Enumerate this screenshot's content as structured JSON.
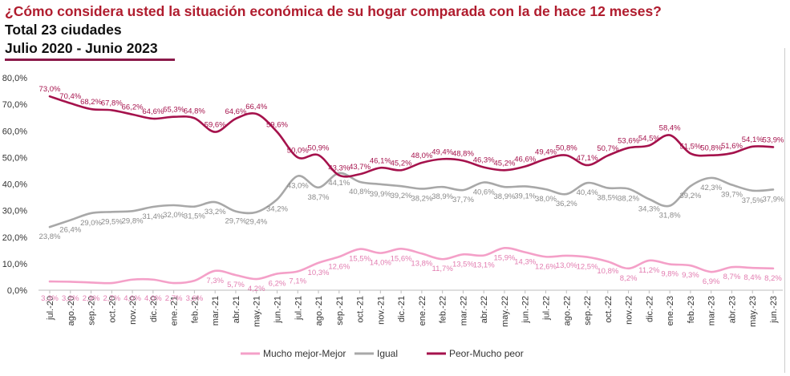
{
  "header": {
    "title": "¿Cómo considera usted la situación económica de su hogar comparada con la de hace 12 meses?",
    "subtitle": "Total 23 ciudades",
    "period": "Julio 2020 - Junio 2023"
  },
  "chart_data": {
    "type": "line",
    "title": "¿Cómo considera usted la situación económica de su hogar comparada con la de hace 12 meses?",
    "xlabel": "",
    "ylabel": "",
    "ylim": [
      0,
      80
    ],
    "yticks": [
      "0,0%",
      "10,0%",
      "20,0%",
      "30,0%",
      "40,0%",
      "50,0%",
      "60,0%",
      "70,0%",
      "80,0%"
    ],
    "grid": false,
    "legend": "bottom",
    "categories": [
      "jul.-20",
      "ago.-20",
      "sep.-20",
      "oct.-20",
      "nov.-20",
      "dic.-20",
      "ene.-21",
      "feb.-21",
      "mar.-21",
      "abr.-21",
      "may.-21",
      "jun.-21",
      "jul.-21",
      "ago.-21",
      "sep.-21",
      "oct.-21",
      "nov.-21",
      "dic.-21",
      "ene.-22",
      "feb.-22",
      "mar.-22",
      "abr.-22",
      "may.-22",
      "jun.-22",
      "jul.-22",
      "ago.-22",
      "sep.-22",
      "oct.-22",
      "nov.-22",
      "dic.-22",
      "ene.-23",
      "feb.-23",
      "mar.-23",
      "abr.-23",
      "may.-23",
      "jun.-23"
    ],
    "series": [
      {
        "name": "Mucho mejor-Mejor",
        "color": "#f4a0c8",
        "values": [
          3.3,
          3.2,
          2.9,
          2.7,
          4.0,
          4.0,
          2.7,
          3.6,
          7.3,
          5.7,
          4.2,
          6.2,
          7.1,
          10.3,
          12.6,
          15.5,
          14.0,
          15.6,
          13.8,
          11.7,
          13.5,
          13.1,
          15.9,
          14.3,
          12.6,
          13.0,
          12.5,
          10.8,
          8.2,
          11.2,
          9.8,
          9.3,
          6.9,
          8.7,
          8.4,
          8.2
        ],
        "labels": [
          "3,3%",
          "3,2%",
          "2,9%",
          "2,7%",
          "4,0%",
          "4,0%",
          "2,7%",
          "3,6%",
          "7,3%",
          "5,7%",
          "4,2%",
          "6,2%",
          "7,1%",
          "10,3%",
          "12,6%",
          "15,5%",
          "14,0%",
          "15,6%",
          "13,8%",
          "11,7%",
          "13,5%",
          "13,1%",
          "15,9%",
          "14,3%",
          "12,6%",
          "13,0%",
          "12,5%",
          "10,8%",
          "8,2%",
          "11,2%",
          "9,8%",
          "9,3%",
          "6,9%",
          "8,7%",
          "8,4%",
          "8,2%"
        ]
      },
      {
        "name": "Igual",
        "color": "#a8a8a8",
        "values": [
          23.8,
          26.4,
          29.0,
          29.5,
          29.8,
          31.4,
          32.0,
          31.5,
          33.2,
          29.7,
          29.4,
          34.2,
          43.0,
          38.7,
          44.1,
          40.8,
          39.9,
          39.2,
          38.2,
          38.9,
          37.7,
          40.6,
          38.9,
          39.1,
          38.0,
          36.2,
          40.4,
          38.5,
          38.2,
          34.3,
          31.8,
          39.2,
          42.3,
          39.7,
          37.5,
          37.9
        ],
        "labels": [
          "23,8%",
          "26,4%",
          "29,0%",
          "29,5%",
          "29,8%",
          "31,4%",
          "32,0%",
          "31,5%",
          "33,2%",
          "29,7%",
          "29,4%",
          "34,2%",
          "43,0%",
          "38,7%",
          "44,1%",
          "40,8%",
          "39,9%",
          "39,2%",
          "38,2%",
          "38,9%",
          "37,7%",
          "40,6%",
          "38,9%",
          "39,1%",
          "38,0%",
          "36,2%",
          "40,4%",
          "38,5%",
          "38,2%",
          "34,3%",
          "31,8%",
          "39,2%",
          "42,3%",
          "39,7%",
          "37,5%",
          "37,9%"
        ]
      },
      {
        "name": "Peor-Mucho peor",
        "color": "#a5124c",
        "values": [
          73.0,
          70.4,
          68.2,
          67.8,
          66.2,
          64.6,
          65.3,
          64.8,
          59.6,
          64.6,
          66.4,
          59.6,
          50.0,
          50.9,
          43.3,
          43.7,
          46.1,
          45.2,
          48.0,
          49.4,
          48.8,
          46.3,
          45.2,
          46.6,
          49.4,
          50.8,
          47.1,
          50.7,
          53.6,
          54.5,
          58.4,
          51.5,
          50.8,
          51.6,
          54.1,
          53.9
        ],
        "labels": [
          "73,0%",
          "70,4%",
          "68,2%",
          "67,8%",
          "66,2%",
          "64,6%",
          "65,3%",
          "64,8%",
          "59,6%",
          "64,6%",
          "66,4%",
          "59,6%",
          "50,0%",
          "50,9%",
          "43,3%",
          "43,7%",
          "46,1%",
          "45,2%",
          "48,0%",
          "49,4%",
          "48,8%",
          "46,3%",
          "45,2%",
          "46,6%",
          "49,4%",
          "50,8%",
          "47,1%",
          "50,7%",
          "53,6%",
          "54,5%",
          "58,4%",
          "51,5%",
          "50,8%",
          "51,6%",
          "54,1%",
          "53,9%"
        ]
      }
    ]
  }
}
